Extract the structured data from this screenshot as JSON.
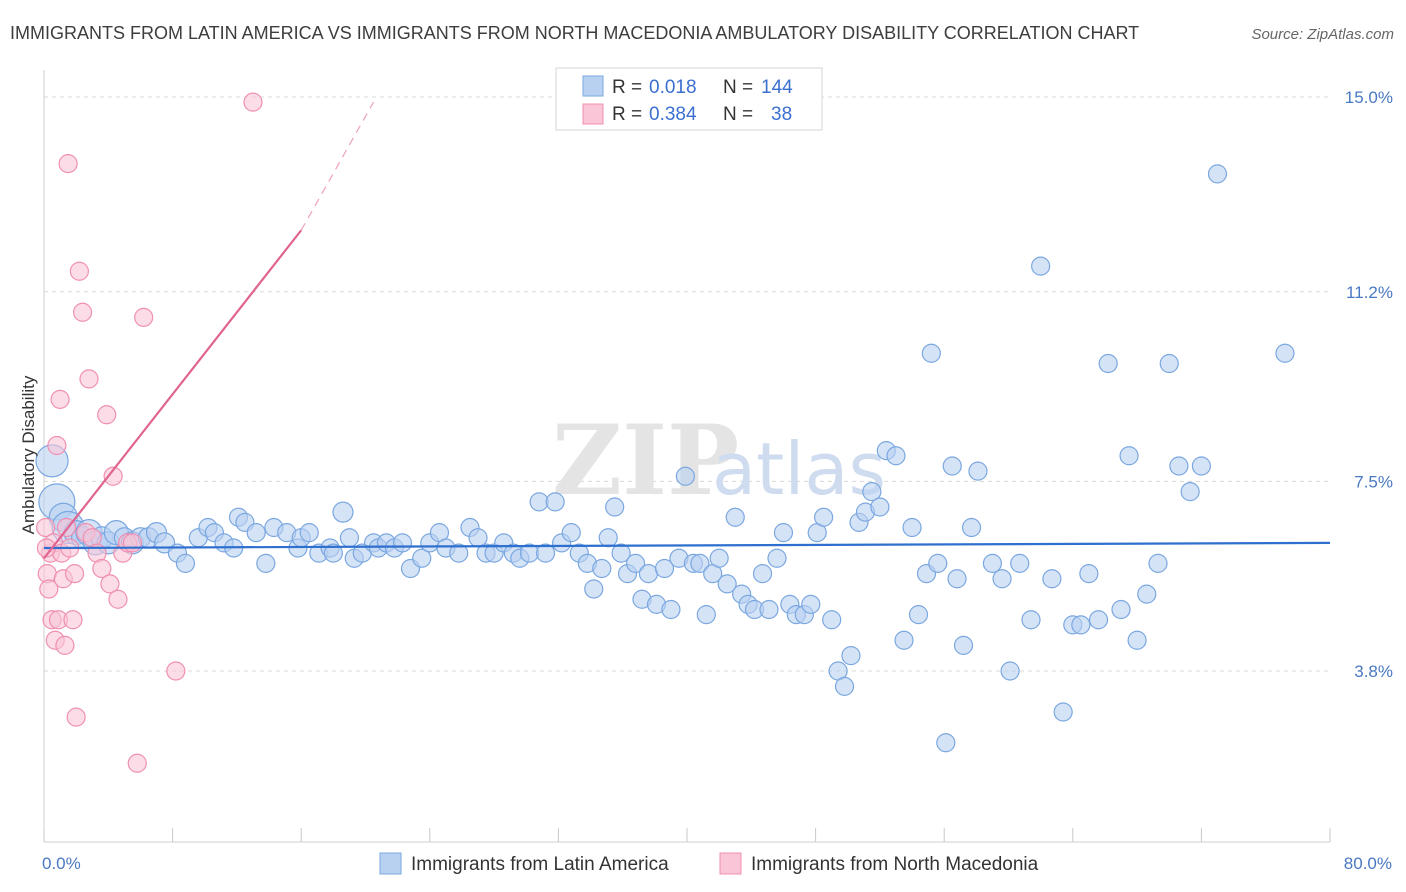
{
  "chart_data": {
    "type": "scatter",
    "title": "IMMIGRANTS FROM LATIN AMERICA VS IMMIGRANTS FROM NORTH MACEDONIA AMBULATORY DISABILITY CORRELATION CHART",
    "source": "Source: ZipAtlas.com",
    "watermark": [
      "ZIP",
      "atlas"
    ],
    "xlabel": "",
    "ylabel": "Ambulatory Disability",
    "xlim": [
      0,
      80
    ],
    "ylim": [
      0,
      16
    ],
    "x_tick_labels": [
      "0.0%",
      "80.0%"
    ],
    "y_ticks": [
      3.8,
      7.5,
      11.2,
      15.0
    ],
    "y_tick_labels": [
      "3.8%",
      "7.5%",
      "11.2%",
      "15.0%"
    ],
    "grid": true,
    "legend_placement": "top-center",
    "legend": {
      "rows": [
        {
          "r_label": "R =",
          "r_value": "0.018",
          "n_label": "N =",
          "n_value": "144"
        },
        {
          "r_label": "R =",
          "r_value": "0.384",
          "n_label": "N =",
          "n_value": "38"
        }
      ]
    },
    "series": [
      {
        "name": "Immigrants from Latin America",
        "color": "#7aa7e0",
        "fill": "#b9d1f1",
        "trend": {
          "x": [
            0,
            80
          ],
          "y": [
            6.2,
            6.3
          ],
          "color": "#2f6fce"
        },
        "points": [
          [
            0.5,
            7.9,
            16
          ],
          [
            0.8,
            7.1,
            18
          ],
          [
            1.2,
            6.8,
            14
          ],
          [
            1.5,
            6.6,
            16
          ],
          [
            2.0,
            6.5,
            12
          ],
          [
            2.4,
            6.4,
            11
          ],
          [
            2.8,
            6.5,
            13
          ],
          [
            3.2,
            6.3,
            12
          ],
          [
            3.6,
            6.4,
            11
          ],
          [
            4.0,
            6.3,
            11
          ],
          [
            4.5,
            6.5,
            12
          ],
          [
            5.0,
            6.4,
            10
          ],
          [
            5.5,
            6.3,
            11
          ],
          [
            6.0,
            6.4,
            10
          ],
          [
            6.5,
            6.4,
            10
          ],
          [
            7.0,
            6.5,
            10
          ],
          [
            7.5,
            6.3,
            10
          ],
          [
            8.3,
            6.1,
            9
          ],
          [
            8.8,
            5.9,
            9
          ],
          [
            9.6,
            6.4,
            9
          ],
          [
            10.2,
            6.6,
            9
          ],
          [
            10.6,
            6.5,
            9
          ],
          [
            11.2,
            6.3,
            9
          ],
          [
            11.8,
            6.2,
            9
          ],
          [
            12.1,
            6.8,
            9
          ],
          [
            12.5,
            6.7,
            9
          ],
          [
            13.2,
            6.5,
            9
          ],
          [
            13.8,
            5.9,
            9
          ],
          [
            14.3,
            6.6,
            9
          ],
          [
            15.1,
            6.5,
            9
          ],
          [
            15.8,
            6.2,
            9
          ],
          [
            16.0,
            6.4,
            9
          ],
          [
            16.5,
            6.5,
            9
          ],
          [
            17.1,
            6.1,
            9
          ],
          [
            17.8,
            6.2,
            9
          ],
          [
            18.0,
            6.1,
            9
          ],
          [
            18.6,
            6.9,
            10
          ],
          [
            19.0,
            6.4,
            9
          ],
          [
            19.3,
            6.0,
            9
          ],
          [
            19.8,
            6.1,
            9
          ],
          [
            20.5,
            6.3,
            9
          ],
          [
            20.8,
            6.2,
            9
          ],
          [
            21.3,
            6.3,
            9
          ],
          [
            21.8,
            6.2,
            9
          ],
          [
            22.3,
            6.3,
            9
          ],
          [
            22.8,
            5.8,
            9
          ],
          [
            23.5,
            6.0,
            9
          ],
          [
            24.0,
            6.3,
            9
          ],
          [
            24.6,
            6.5,
            9
          ],
          [
            25.0,
            6.2,
            9
          ],
          [
            25.8,
            6.1,
            9
          ],
          [
            26.5,
            6.6,
            9
          ],
          [
            27.0,
            6.4,
            9
          ],
          [
            27.5,
            6.1,
            9
          ],
          [
            28.0,
            6.1,
            9
          ],
          [
            28.6,
            6.3,
            9
          ],
          [
            29.2,
            6.1,
            9
          ],
          [
            29.6,
            6.0,
            9
          ],
          [
            30.2,
            6.1,
            9
          ],
          [
            30.8,
            7.1,
            9
          ],
          [
            31.2,
            6.1,
            9
          ],
          [
            31.8,
            7.1,
            9
          ],
          [
            32.2,
            6.3,
            9
          ],
          [
            32.8,
            6.5,
            9
          ],
          [
            33.3,
            6.1,
            9
          ],
          [
            33.8,
            5.9,
            9
          ],
          [
            34.2,
            5.4,
            9
          ],
          [
            34.7,
            5.8,
            9
          ],
          [
            35.1,
            6.4,
            9
          ],
          [
            35.5,
            7.0,
            9
          ],
          [
            35.9,
            6.1,
            9
          ],
          [
            36.3,
            5.7,
            9
          ],
          [
            36.8,
            5.9,
            9
          ],
          [
            37.2,
            5.2,
            9
          ],
          [
            37.6,
            5.7,
            9
          ],
          [
            38.1,
            5.1,
            9
          ],
          [
            38.6,
            5.8,
            9
          ],
          [
            39.0,
            5.0,
            9
          ],
          [
            39.5,
            6.0,
            9
          ],
          [
            39.9,
            7.6,
            9
          ],
          [
            40.4,
            5.9,
            9
          ],
          [
            40.8,
            5.9,
            9
          ],
          [
            41.2,
            4.9,
            9
          ],
          [
            41.6,
            5.7,
            9
          ],
          [
            42.0,
            6.0,
            9
          ],
          [
            42.5,
            5.5,
            9
          ],
          [
            43.0,
            6.8,
            9
          ],
          [
            43.4,
            5.3,
            9
          ],
          [
            43.8,
            5.1,
            9
          ],
          [
            44.2,
            5.0,
            9
          ],
          [
            44.7,
            5.7,
            9
          ],
          [
            45.1,
            5.0,
            9
          ],
          [
            45.6,
            6.0,
            9
          ],
          [
            46.0,
            6.5,
            9
          ],
          [
            46.4,
            5.1,
            9
          ],
          [
            46.8,
            4.9,
            9
          ],
          [
            47.3,
            4.9,
            9
          ],
          [
            47.7,
            5.1,
            9
          ],
          [
            48.1,
            6.5,
            9
          ],
          [
            48.5,
            6.8,
            9
          ],
          [
            49.0,
            4.8,
            9
          ],
          [
            49.4,
            3.8,
            9
          ],
          [
            49.8,
            3.5,
            9
          ],
          [
            50.2,
            4.1,
            9
          ],
          [
            50.7,
            6.7,
            9
          ],
          [
            51.1,
            6.9,
            9
          ],
          [
            51.5,
            7.3,
            9
          ],
          [
            52.0,
            7.0,
            9
          ],
          [
            52.4,
            8.1,
            9
          ],
          [
            53.0,
            8.0,
            9
          ],
          [
            53.5,
            4.4,
            9
          ],
          [
            54.0,
            6.6,
            9
          ],
          [
            54.4,
            4.9,
            9
          ],
          [
            54.9,
            5.7,
            9
          ],
          [
            55.2,
            10.0,
            9
          ],
          [
            55.6,
            5.9,
            9
          ],
          [
            56.1,
            2.4,
            9
          ],
          [
            56.5,
            7.8,
            9
          ],
          [
            56.8,
            5.6,
            9
          ],
          [
            57.2,
            4.3,
            9
          ],
          [
            57.7,
            6.6,
            9
          ],
          [
            58.1,
            7.7,
            9
          ],
          [
            59.0,
            5.9,
            9
          ],
          [
            59.6,
            5.6,
            9
          ],
          [
            60.1,
            3.8,
            9
          ],
          [
            60.7,
            5.9,
            9
          ],
          [
            61.4,
            4.8,
            9
          ],
          [
            62.0,
            11.7,
            9
          ],
          [
            62.7,
            5.6,
            9
          ],
          [
            63.4,
            3.0,
            9
          ],
          [
            64.0,
            4.7,
            9
          ],
          [
            64.5,
            4.7,
            9
          ],
          [
            65.0,
            5.7,
            9
          ],
          [
            65.6,
            4.8,
            9
          ],
          [
            66.2,
            9.8,
            9
          ],
          [
            67.0,
            5.0,
            9
          ],
          [
            67.5,
            8.0,
            9
          ],
          [
            68.0,
            4.4,
            9
          ],
          [
            68.6,
            5.3,
            9
          ],
          [
            69.3,
            5.9,
            9
          ],
          [
            70.0,
            9.8,
            9
          ],
          [
            70.6,
            7.8,
            9
          ],
          [
            71.3,
            7.3,
            9
          ],
          [
            72.0,
            7.8,
            9
          ],
          [
            73.0,
            13.5,
            9
          ],
          [
            77.2,
            10.0,
            9
          ]
        ]
      },
      {
        "name": "Immigrants from North Macedonia",
        "color": "#f08fb0",
        "fill": "#f9c5d7",
        "trend": {
          "x": [
            0,
            16
          ],
          "y": [
            6.0,
            12.4
          ],
          "dash_to": [
            20.5,
            14.9
          ],
          "color": "#e0648f"
        },
        "points": [
          [
            0.1,
            6.6,
            9
          ],
          [
            0.2,
            5.7,
            9
          ],
          [
            0.3,
            5.4,
            9
          ],
          [
            0.4,
            6.1,
            9
          ],
          [
            0.5,
            4.8,
            9
          ],
          [
            0.6,
            6.3,
            9
          ],
          [
            0.7,
            4.4,
            9
          ],
          [
            0.8,
            8.2,
            9
          ],
          [
            0.9,
            4.8,
            9
          ],
          [
            1.0,
            9.1,
            9
          ],
          [
            1.1,
            6.1,
            9
          ],
          [
            1.2,
            5.6,
            9
          ],
          [
            1.3,
            4.3,
            9
          ],
          [
            1.4,
            6.6,
            9
          ],
          [
            1.5,
            13.7,
            9
          ],
          [
            1.6,
            6.2,
            9
          ],
          [
            1.8,
            4.8,
            9
          ],
          [
            1.9,
            5.7,
            9
          ],
          [
            2.0,
            2.9,
            9
          ],
          [
            2.2,
            11.6,
            9
          ],
          [
            2.4,
            10.8,
            9
          ],
          [
            2.6,
            6.5,
            9
          ],
          [
            2.8,
            9.5,
            9
          ],
          [
            3.0,
            6.4,
            9
          ],
          [
            3.3,
            6.1,
            9
          ],
          [
            3.6,
            5.8,
            9
          ],
          [
            3.9,
            8.8,
            9
          ],
          [
            4.1,
            5.5,
            9
          ],
          [
            4.3,
            7.6,
            9
          ],
          [
            4.6,
            5.2,
            9
          ],
          [
            4.9,
            6.1,
            9
          ],
          [
            5.2,
            6.3,
            9
          ],
          [
            5.5,
            6.3,
            9
          ],
          [
            5.8,
            2.0,
            9
          ],
          [
            6.2,
            10.7,
            9
          ],
          [
            8.2,
            3.8,
            9
          ],
          [
            13.0,
            14.9,
            9
          ],
          [
            0.15,
            6.2,
            9
          ]
        ]
      }
    ]
  }
}
